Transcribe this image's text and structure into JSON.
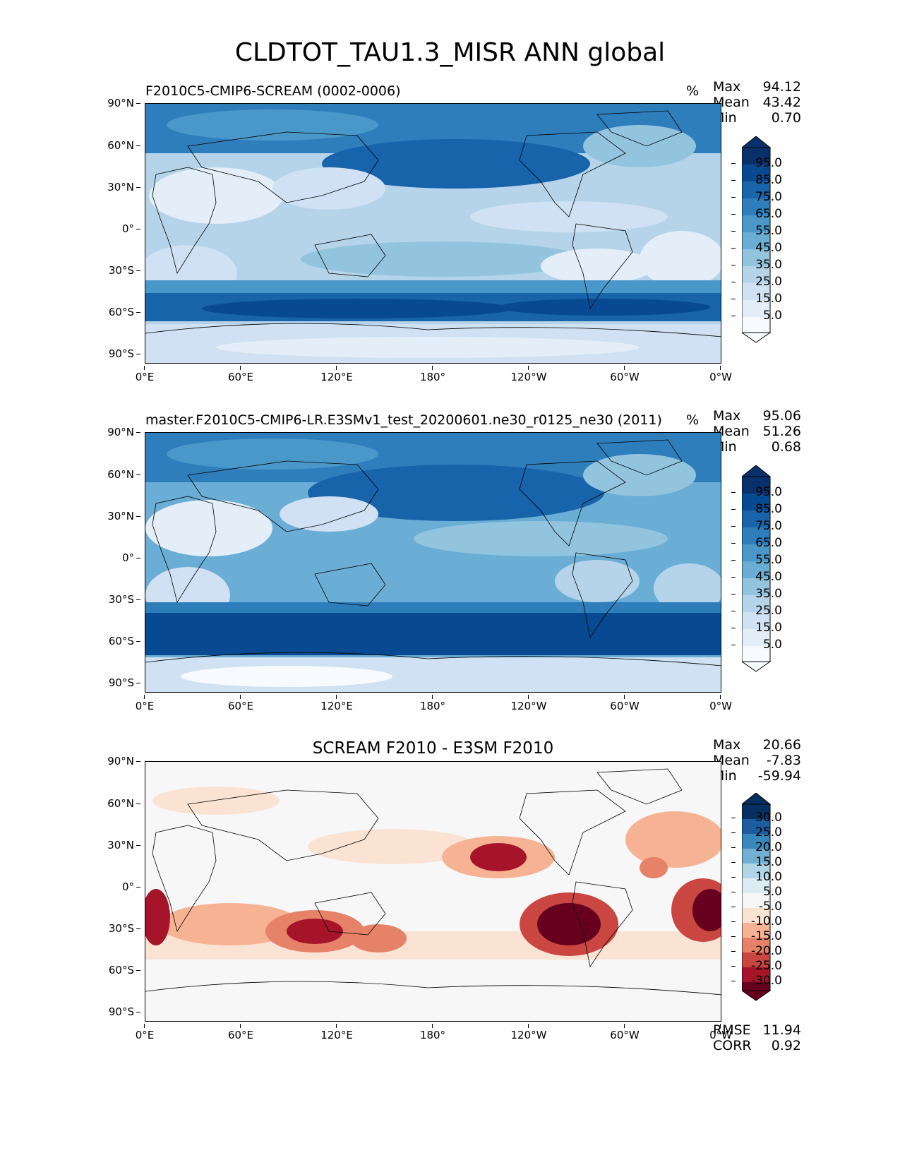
{
  "title": "CLDTOT_TAU1.3_MISR ANN global",
  "lat_ticks": [
    "90°N",
    "60°N",
    "30°N",
    "0°",
    "30°S",
    "60°S",
    "90°S"
  ],
  "lon_ticks": [
    "0°E",
    "60°E",
    "120°E",
    "180°",
    "120°W",
    "60°W",
    "0°W"
  ],
  "panels": [
    {
      "title": "F2010C5-CMIP6-SCREAM (0002-0006)",
      "unit": "%",
      "stats": {
        "Max": "94.12",
        "Mean": "43.42",
        "Min": "0.70"
      },
      "colorbar_labels": [
        "95.0",
        "85.0",
        "75.0",
        "65.0",
        "55.0",
        "45.0",
        "35.0",
        "25.0",
        "15.0",
        "5.0"
      ],
      "colormap": "Blues"
    },
    {
      "title": "master.F2010C5-CMIP6-LR.E3SMv1_test_20200601.ne30_r0125_ne30 (2011)",
      "unit": "%",
      "stats": {
        "Max": "95.06",
        "Mean": "51.26",
        "Min": "0.68"
      },
      "colorbar_labels": [
        "95.0",
        "85.0",
        "75.0",
        "65.0",
        "55.0",
        "45.0",
        "35.0",
        "25.0",
        "15.0",
        "5.0"
      ],
      "colormap": "Blues"
    },
    {
      "title": "SCREAM F2010 - E3SM F2010",
      "unit": "",
      "stats": {
        "Max": "20.66",
        "Mean": "-7.83",
        "Min": "-59.94"
      },
      "colorbar_labels": [
        "30.0",
        "25.0",
        "20.0",
        "15.0",
        "10.0",
        "5.0",
        "-5.0",
        "-10.0",
        "-15.0",
        "-20.0",
        "-25.0",
        "-30.0"
      ],
      "colormap": "RdBu",
      "metrics": {
        "RMSE": "11.94",
        "CORR": "0.92"
      }
    }
  ],
  "colors": {
    "blues": [
      "#f7fbff",
      "#e3eef9",
      "#cfe1f2",
      "#b5d4e9",
      "#93c4de",
      "#6aadd5",
      "#4a98c9",
      "#2e7ebc",
      "#1764ab",
      "#084a91",
      "#08306b"
    ],
    "rdbu": [
      "#67001f",
      "#a51429",
      "#ca4741",
      "#e58267",
      "#f6b394",
      "#fbe3d4",
      "#f7f7f7",
      "#ddebf2",
      "#b1d5e7",
      "#72b0d3",
      "#3a87bd",
      "#1c5da0",
      "#053061"
    ]
  }
}
